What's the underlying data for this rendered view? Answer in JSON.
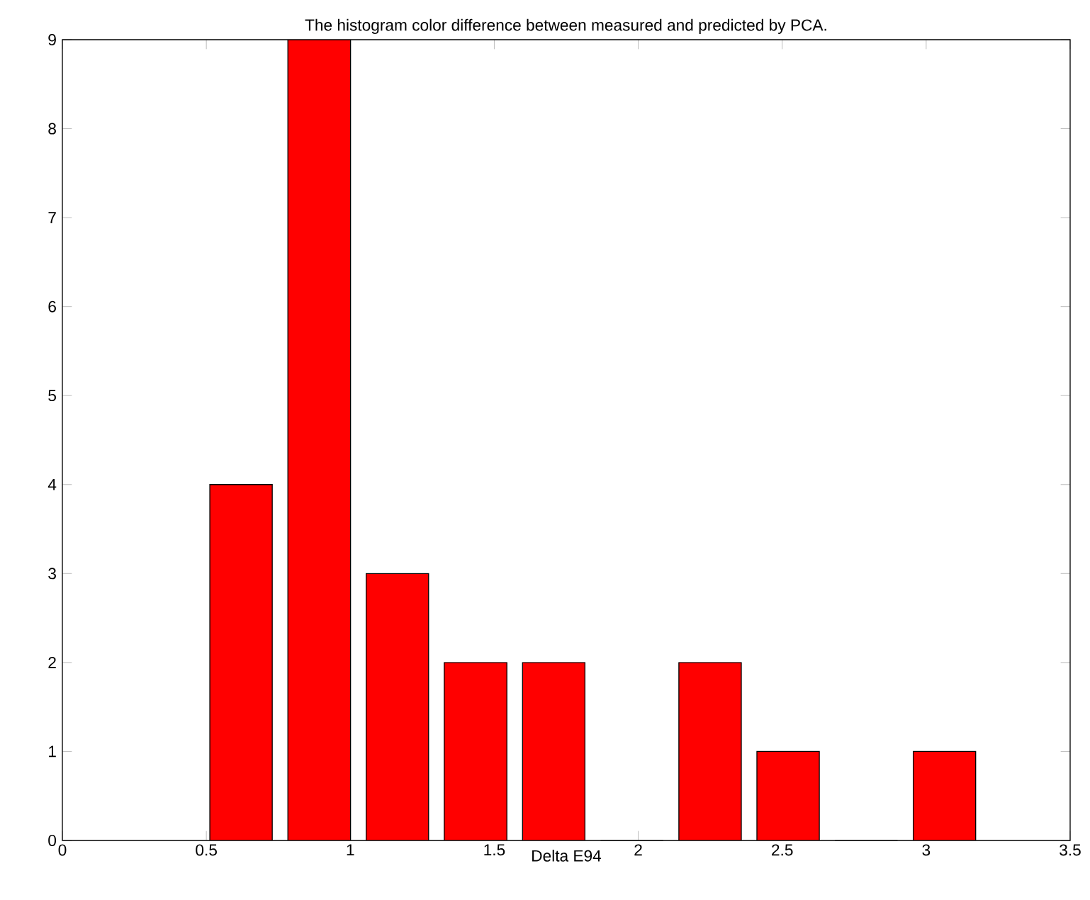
{
  "chart_data": {
    "type": "histogram",
    "title": "The histogram color difference between measured and predicted by PCA.",
    "xlabel": "Delta E94",
    "bins": [
      0.485,
      0.756,
      1.028,
      1.299,
      1.571,
      1.842,
      2.114,
      2.385,
      2.656,
      2.928,
      3.199
    ],
    "values": [
      4,
      9,
      3,
      2,
      2,
      0,
      2,
      1,
      0,
      1
    ],
    "color": "#ff0000",
    "xlim": [
      0,
      3.5
    ],
    "xticks": [
      0,
      0.5,
      1,
      1.5,
      2,
      2.5,
      3,
      3.5
    ],
    "ylim": [
      0,
      9
    ],
    "yticks": [
      0,
      1,
      2,
      3,
      4,
      5,
      6,
      7,
      8,
      9
    ],
    "grid": false
  }
}
